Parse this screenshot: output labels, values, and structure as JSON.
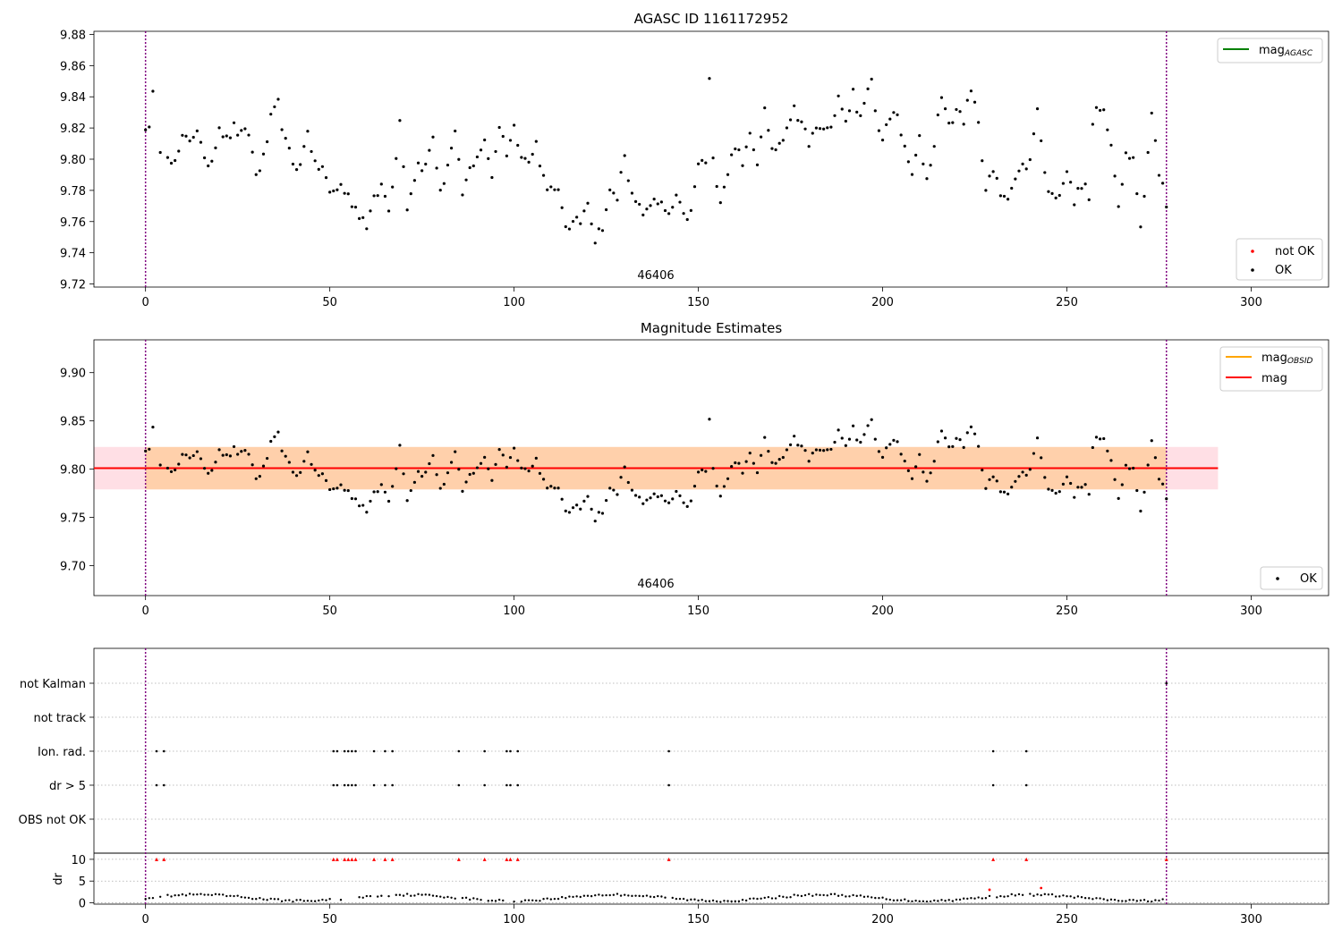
{
  "chart_data": [
    {
      "type": "scatter",
      "title": "AGASC ID 1161172952",
      "xlim": [
        -14,
        321
      ],
      "ylim": [
        9.718,
        9.882
      ],
      "xticks": [
        0,
        50,
        100,
        150,
        200,
        250,
        300
      ],
      "yticks": [
        9.72,
        9.74,
        9.76,
        9.78,
        9.8,
        9.82,
        9.84,
        9.86,
        9.88
      ],
      "ytick_labels": [
        "9.72",
        "9.74",
        "9.76",
        "9.78",
        "9.80",
        "9.82",
        "9.84",
        "9.86",
        "9.88"
      ],
      "vlines": [
        0,
        277
      ],
      "obsid_label": "46406",
      "legend_upper": [
        {
          "name": "mag_AGASC",
          "text": "mag",
          "sub": "AGASC",
          "color": "#008000"
        }
      ],
      "legend_lower": [
        {
          "name": "not OK",
          "color": "#ff0000"
        },
        {
          "name": "OK",
          "color": "#000000"
        }
      ],
      "series": [
        {
          "name": "OK",
          "color": "#000000"
        }
      ]
    },
    {
      "type": "scatter",
      "title": "Magnitude Estimates",
      "xlim": [
        -14,
        321
      ],
      "ylim": [
        9.669,
        9.934
      ],
      "xticks": [
        0,
        50,
        100,
        150,
        200,
        250,
        300
      ],
      "yticks": [
        9.7,
        9.75,
        9.8,
        9.85,
        9.9
      ],
      "ytick_labels": [
        "9.70",
        "9.75",
        "9.80",
        "9.85",
        "9.90"
      ],
      "vlines": [
        0,
        277
      ],
      "obsid_label": "46406",
      "mag": 9.801,
      "mag_obsid": 9.801,
      "band_obsid": [
        9.779,
        9.823
      ],
      "band_mag": [
        9.779,
        9.823
      ],
      "band_x": [
        -14,
        291
      ],
      "legend_upper": [
        {
          "name": "mag_OBSID",
          "text": "mag",
          "sub": "OBSID",
          "color": "#ffa500"
        },
        {
          "name": "mag",
          "text": "mag",
          "sub": "",
          "color": "#ff0000"
        }
      ],
      "legend_lower": [
        {
          "name": "OK",
          "color": "#000000"
        }
      ],
      "series": [
        {
          "name": "OK",
          "color": "#000000"
        }
      ]
    },
    {
      "type": "scatter",
      "title": "",
      "xlim": [
        -14,
        321
      ],
      "xticks": [
        0,
        50,
        100,
        150,
        200,
        250,
        300
      ],
      "vlines": [
        0,
        277
      ],
      "flag_rows": [
        "not Kalman",
        "not track",
        "Ion. rad.",
        "dr > 5",
        "OBS not OK"
      ],
      "flag_points": {
        "not Kalman": [
          277
        ],
        "not track": [],
        "Ion. rad.": [
          3,
          5,
          51,
          52,
          54,
          55,
          56,
          57,
          62,
          65,
          67,
          85,
          92,
          98,
          99,
          101,
          142,
          230,
          239
        ],
        "dr > 5": [
          3,
          5,
          51,
          52,
          54,
          55,
          56,
          57,
          62,
          65,
          67,
          85,
          92,
          98,
          99,
          101,
          142,
          230,
          239
        ],
        "OBS not OK": []
      },
      "dr_ylabel": "dr",
      "dr_yticks": [
        0,
        5,
        10
      ],
      "dr_ylim": [
        -0.3,
        10.8
      ],
      "dr_clipped": [
        3,
        5,
        51,
        52,
        54,
        55,
        56,
        57,
        62,
        65,
        67,
        85,
        92,
        98,
        99,
        101,
        142,
        230,
        239,
        277
      ],
      "dr_red_points": [
        [
          229,
          3.0
        ],
        [
          243,
          3.4
        ]
      ]
    }
  ]
}
